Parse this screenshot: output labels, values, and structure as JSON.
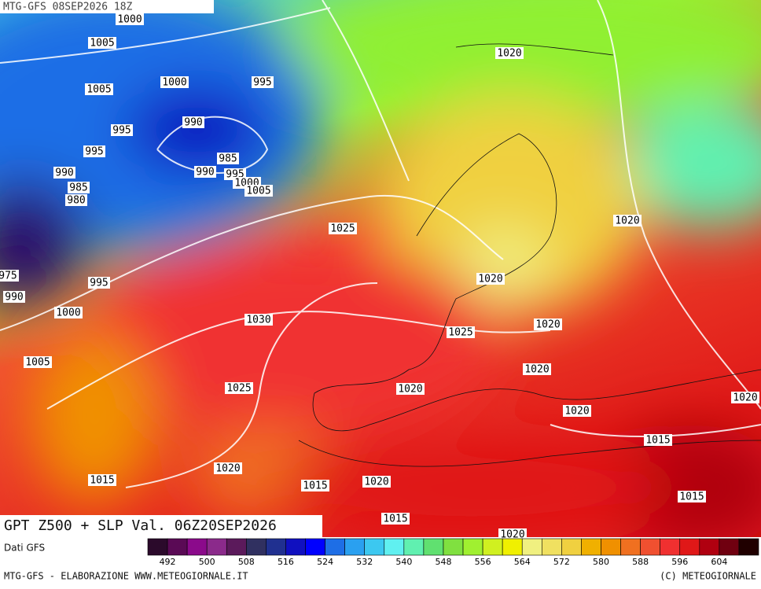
{
  "header": {
    "title": "MTG-GFS 08SEP2026 18Z"
  },
  "map": {
    "title": "GPT Z500 + SLP Val. 06Z20SEP2026",
    "isobar_labels": [
      "1000",
      "1005",
      "1020",
      "1005",
      "1000",
      "995",
      "990",
      "995",
      "995",
      "985",
      "990",
      "990",
      "995",
      "1000",
      "1005",
      "985",
      "980",
      "1020",
      "1025",
      "1020",
      "975",
      "990",
      "995",
      "1000",
      "1030",
      "1020",
      "1025",
      "1005",
      "1020",
      "1025",
      "1020",
      "1020",
      "1020",
      "1015",
      "1020",
      "1015",
      "1015",
      "1020",
      "1015",
      "1015",
      "1020"
    ]
  },
  "colorbar": {
    "source": "Dati GFS",
    "ticks": [
      492,
      500,
      508,
      516,
      524,
      532,
      540,
      548,
      556,
      564,
      572,
      580,
      588,
      596,
      604
    ],
    "colors": [
      "#2b0a2b",
      "#5a0a55",
      "#8b0a8b",
      "#8b2a8b",
      "#5b1a5b",
      "#303060",
      "#203090",
      "#1010c0",
      "#0000ff",
      "#1e6ee6",
      "#2aa0f0",
      "#3cc8f0",
      "#60f0f0",
      "#60f0b0",
      "#60e070",
      "#80e040",
      "#a0f030",
      "#d0f020",
      "#f0f000",
      "#f0f080",
      "#f0e060",
      "#f0d040",
      "#f0b000",
      "#f09000",
      "#f07020",
      "#f05030",
      "#f03030",
      "#e01818",
      "#b00010",
      "#700010",
      "#200000"
    ]
  },
  "footer": {
    "left": "MTG-GFS - ELABORAZIONE WWW.METEOGIORNALE.IT",
    "right": "(C) METEOGIORNALE"
  }
}
